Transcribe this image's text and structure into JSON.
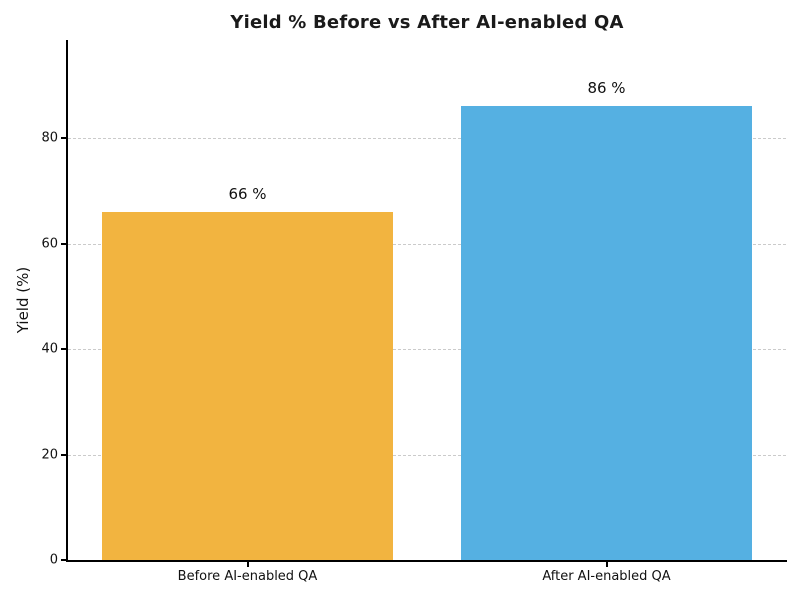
{
  "chart_data": {
    "type": "bar",
    "title": "Yield % Before vs After AI-enabled QA",
    "categories": [
      "Before AI-enabled QA",
      "After AI-enabled QA"
    ],
    "values": [
      66,
      86
    ],
    "bar_labels": [
      "66 %",
      "86 %"
    ],
    "bar_colors": [
      "#f2b440",
      "#55b0e2"
    ],
    "ylabel": "Yield (%)",
    "xlabel": "",
    "ylim": [
      0,
      98.6
    ],
    "yticks": [
      0,
      20,
      40,
      60,
      80
    ],
    "grid": {
      "axis": "y",
      "style": "dashed",
      "color": "#cbcbcb"
    },
    "legend": "none",
    "axis_color": "#000000",
    "text_color": "#1a1a1a",
    "background": "#ffffff"
  }
}
